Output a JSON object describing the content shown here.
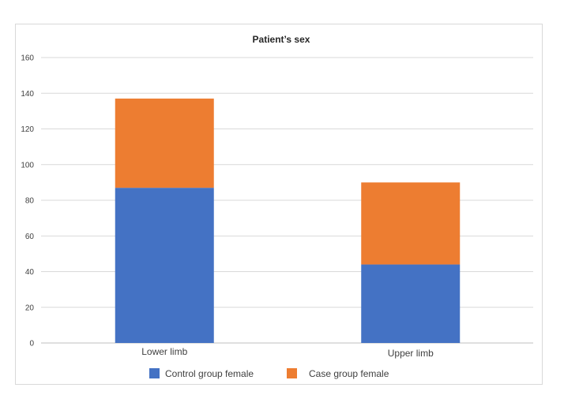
{
  "chart_data": {
    "type": "bar",
    "stacked": true,
    "title": "Patient’s sex",
    "categories": [
      "Lower limb",
      "Upper limb"
    ],
    "series": [
      {
        "name": "Control group female",
        "values": [
          87,
          44
        ],
        "color": "#4472C4"
      },
      {
        "name": "Case group female",
        "values": [
          50,
          46
        ],
        "color": "#ED7D31"
      }
    ],
    "ylim": [
      0,
      160
    ],
    "yticks": [
      0,
      20,
      40,
      60,
      80,
      100,
      120,
      140,
      160
    ],
    "grid": true,
    "legend": "bottom",
    "xlabel": "",
    "ylabel": ""
  }
}
